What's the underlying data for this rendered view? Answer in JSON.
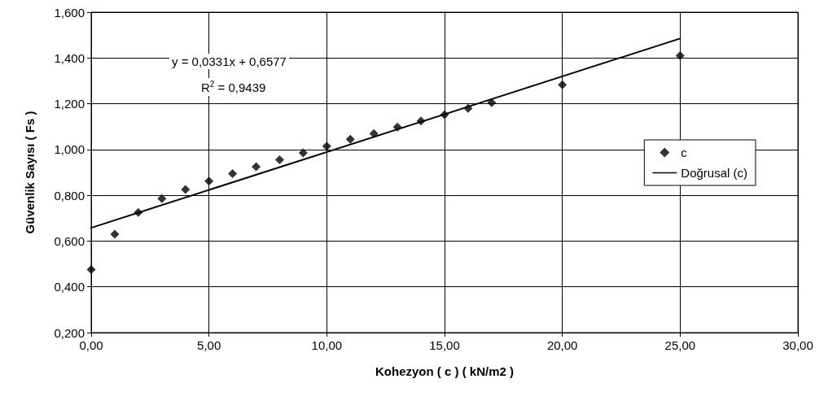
{
  "chart_data": {
    "type": "scatter",
    "xlabel": "Kohezyon ( c ) ( kN/m2 )",
    "ylabel": "Güvenlik Sayısı ( Fs )",
    "annotations": [
      "y = 0,0331x + 0,6577",
      "R$^{2}$ = 0,9439"
    ],
    "series": [
      {
        "name": "c",
        "color": "#000000",
        "marker": "diamond",
        "x": [
          0,
          1,
          2,
          3,
          4,
          5,
          6,
          7,
          8,
          9,
          10,
          11,
          12,
          13,
          14,
          15,
          16,
          17,
          20,
          25
        ],
        "values": [
          0.475,
          0.63,
          0.725,
          0.785,
          0.825,
          0.862,
          0.895,
          0.925,
          0.955,
          0.985,
          1.015,
          1.045,
          1.07,
          1.098,
          1.125,
          1.152,
          1.18,
          1.205,
          1.283,
          1.41
        ]
      },
      {
        "name": "Doğrusal (c)",
        "type": "line",
        "color": "#000000",
        "marker": "none",
        "line_style": "solid",
        "x": [
          0,
          25
        ],
        "values": [
          0.658,
          1.485
        ]
      }
    ],
    "xlim": [
      0,
      30
    ],
    "xticks": [
      {
        "value": 0,
        "label": "0,00"
      },
      {
        "value": 5,
        "label": "5,00"
      },
      {
        "value": 10,
        "label": "10,00"
      },
      {
        "value": 15,
        "label": "15,00"
      },
      {
        "value": 20,
        "label": "20,00"
      },
      {
        "value": 25,
        "label": "25,00"
      },
      {
        "value": 30,
        "label": "30,00"
      }
    ],
    "ylim": [
      0.2,
      1.6
    ],
    "yticks": [
      {
        "value": 0.2,
        "label": "0,200"
      },
      {
        "value": 0.4,
        "label": "0,400"
      },
      {
        "value": 0.6,
        "label": "0,600"
      },
      {
        "value": 0.8,
        "label": "0,800"
      },
      {
        "value": 1.0,
        "label": "1,000"
      },
      {
        "value": 1.2,
        "label": "1,200"
      },
      {
        "value": 1.4,
        "label": "1,400"
      },
      {
        "value": 1.6,
        "label": "1,600"
      }
    ],
    "grid": true,
    "legend": "right"
  }
}
